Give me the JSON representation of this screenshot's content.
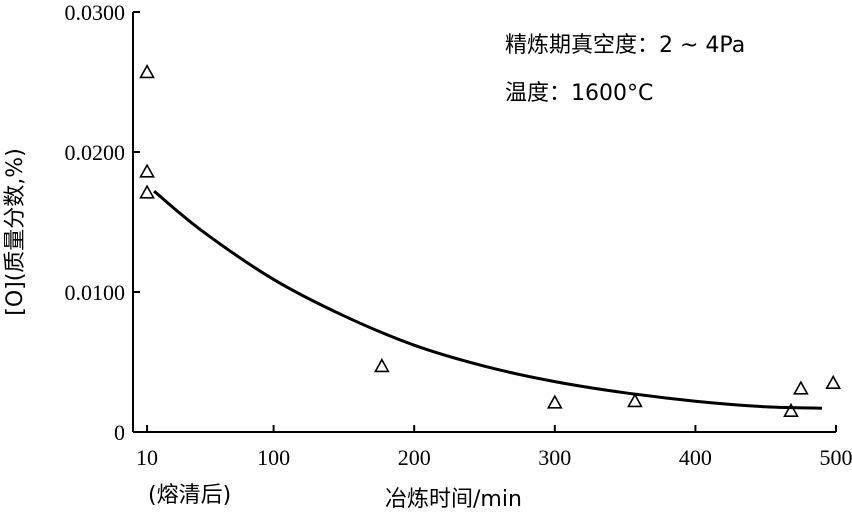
{
  "chart_data": {
    "type": "scatter",
    "title": "",
    "xlabel": "冶炼时间/min",
    "ylabel": "[O](质量分数,%)",
    "x_ticks": [
      10,
      100,
      200,
      300,
      400,
      500
    ],
    "x_tick_labels": [
      "10",
      "100",
      "200",
      "300",
      "400",
      "500"
    ],
    "x_sub_label": "(熔清后)",
    "y_ticks": [
      0,
      0.01,
      0.02,
      0.03
    ],
    "y_tick_labels": [
      "0",
      "0.0100",
      "0.0200",
      "0.0300"
    ],
    "xlim": [
      0,
      500
    ],
    "ylim": [
      0,
      0.03
    ],
    "grid": false,
    "annotations": [
      "精炼期真空度：2 ~ 4Pa",
      "温度：1600°C"
    ],
    "series": [
      {
        "marker": "triangle-open",
        "x": [
          10,
          10,
          10,
          177,
          300,
          357,
          468,
          475,
          498
        ],
        "y": [
          0.0257,
          0.0186,
          0.0171,
          0.0047,
          0.0021,
          0.0022,
          0.0015,
          0.0031,
          0.0035
        ]
      },
      {
        "line": "smooth-fit",
        "x": [
          15,
          50,
          100,
          150,
          200,
          250,
          300,
          350,
          400,
          450,
          490
        ],
        "y": [
          0.0172,
          0.0143,
          0.0109,
          0.0083,
          0.0062,
          0.0047,
          0.0036,
          0.0028,
          0.0022,
          0.0018,
          0.0017
        ]
      }
    ]
  }
}
